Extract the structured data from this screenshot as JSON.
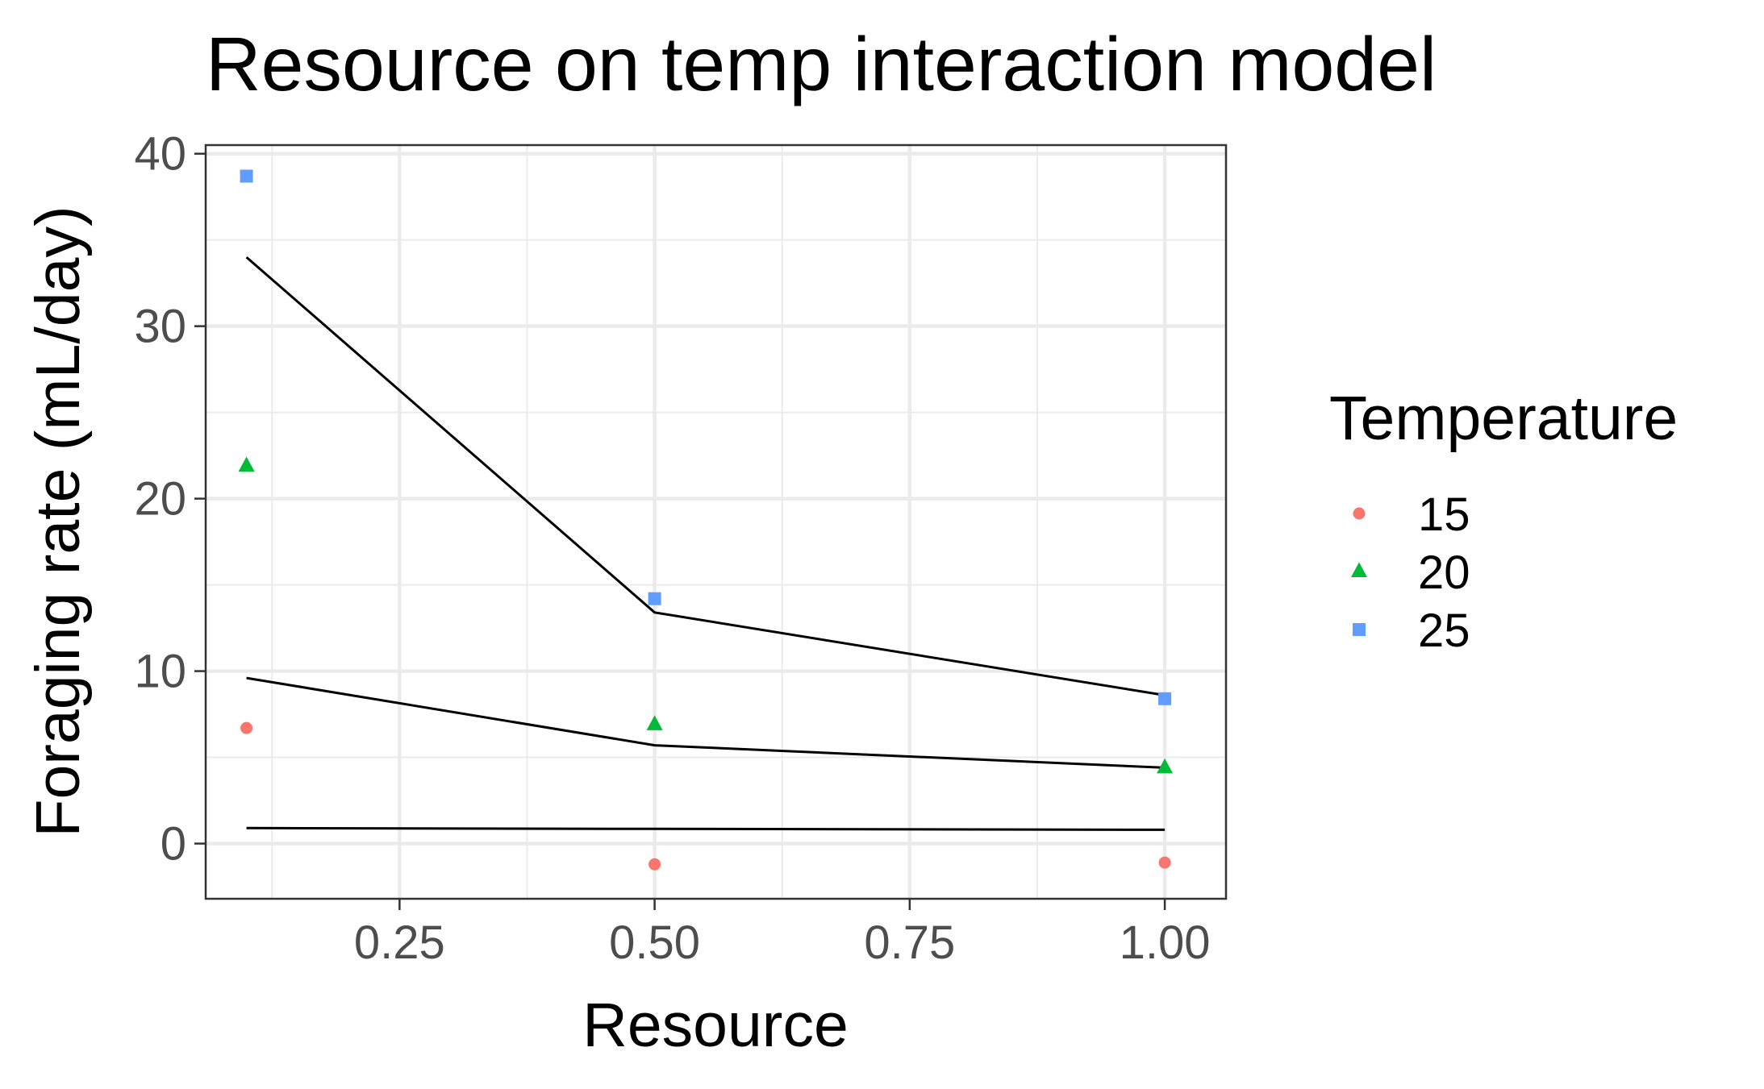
{
  "chart_data": {
    "type": "scatter",
    "title": "Resource on temp interaction model",
    "xlabel": "Resource",
    "ylabel": "Foraging rate (mL/day)",
    "xlim": [
      0.06,
      1.06
    ],
    "ylim": [
      -3.2,
      40.5
    ],
    "x_ticks": [
      0.25,
      0.5,
      0.75,
      1.0
    ],
    "x_tick_labels": [
      "0.25",
      "0.50",
      "0.75",
      "1.00"
    ],
    "y_ticks": [
      0,
      10,
      20,
      30,
      40
    ],
    "y_tick_labels": [
      "0",
      "10",
      "20",
      "30",
      "40"
    ],
    "grid": true,
    "legend": {
      "title": "Temperature",
      "position": "right"
    },
    "series": [
      {
        "name": "15",
        "color": "#F8766D",
        "shape": "circle",
        "points": [
          {
            "x": 0.1,
            "y": 6.7
          },
          {
            "x": 0.5,
            "y": -1.2
          },
          {
            "x": 1.0,
            "y": -1.1
          }
        ],
        "fit": [
          {
            "x": 0.1,
            "y": 0.9
          },
          {
            "x": 0.5,
            "y": 0.85
          },
          {
            "x": 1.0,
            "y": 0.8
          }
        ]
      },
      {
        "name": "20",
        "color": "#00BA38",
        "shape": "triangle",
        "points": [
          {
            "x": 0.1,
            "y": 21.9
          },
          {
            "x": 0.5,
            "y": 6.9
          },
          {
            "x": 1.0,
            "y": 4.4
          }
        ],
        "fit": [
          {
            "x": 0.1,
            "y": 9.6
          },
          {
            "x": 0.5,
            "y": 5.7
          },
          {
            "x": 1.0,
            "y": 4.4
          }
        ]
      },
      {
        "name": "25",
        "color": "#619CFF",
        "shape": "square",
        "points": [
          {
            "x": 0.1,
            "y": 38.7
          },
          {
            "x": 0.5,
            "y": 14.2
          },
          {
            "x": 1.0,
            "y": 8.4
          }
        ],
        "fit": [
          {
            "x": 0.1,
            "y": 34.0
          },
          {
            "x": 0.5,
            "y": 13.4
          },
          {
            "x": 1.0,
            "y": 8.6
          }
        ]
      }
    ]
  }
}
